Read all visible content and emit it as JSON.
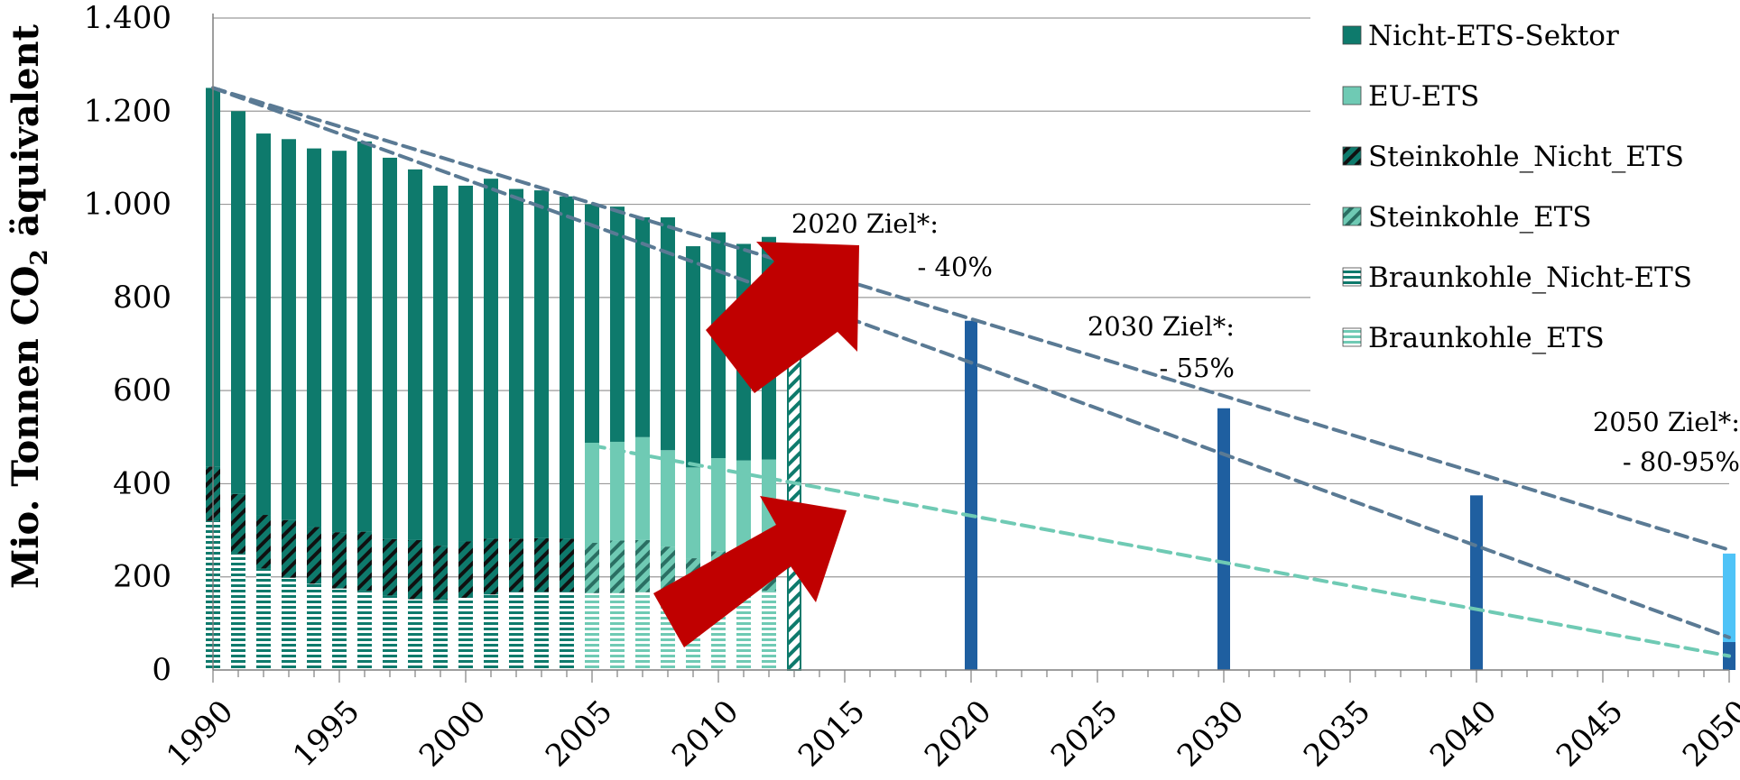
{
  "chart_data": {
    "type": "bar",
    "ylabel_main": "Mio. Tonnen CO",
    "ylabel_sub": "2",
    "ylabel_tail": " äquivalent",
    "ylim": [
      0,
      1400
    ],
    "yticks": [
      0,
      200,
      400,
      600,
      800,
      1000,
      1200,
      1400
    ],
    "ytick_labels": [
      "0",
      "200",
      "400",
      "600",
      "800",
      "1.000",
      "1.200",
      "1.400"
    ],
    "xlim": [
      1990,
      2050
    ],
    "xticks": [
      "1990",
      "1995",
      "2000",
      "2005",
      "2010",
      "2015",
      "2020",
      "2025",
      "2030",
      "2035",
      "2040",
      "2045",
      "2050"
    ],
    "grid": true,
    "legend_position": "top-right",
    "legend": [
      {
        "name": "Nicht-ETS-Sektor",
        "color": "#0e7a6c",
        "pattern": "solid"
      },
      {
        "name": "EU-ETS",
        "color": "#6fcab4",
        "pattern": "solid"
      },
      {
        "name": "Steinkohle_Nicht_ETS",
        "color": "#0e7a6c",
        "pattern": "diag-dark"
      },
      {
        "name": "Steinkohle_ETS",
        "color": "#6fcab4",
        "pattern": "diag-light"
      },
      {
        "name": "Braunkohle_Nicht-ETS",
        "color": "#0e7a6c",
        "pattern": "horiz-dark"
      },
      {
        "name": "Braunkohle_ETS",
        "color": "#6fcab4",
        "pattern": "horiz-light"
      }
    ],
    "historical": {
      "years": [
        1990,
        1991,
        1992,
        1993,
        1994,
        1995,
        1996,
        1997,
        1998,
        1999,
        2000,
        2001,
        2002,
        2003,
        2004,
        2005,
        2006,
        2007,
        2008,
        2009,
        2010,
        2011,
        2012
      ],
      "total": [
        1250,
        1200,
        1152,
        1140,
        1120,
        1115,
        1135,
        1100,
        1075,
        1040,
        1040,
        1055,
        1033,
        1030,
        1017,
        1000,
        995,
        972,
        972,
        910,
        940,
        915,
        930
      ],
      "ets_share_start_year": 2005,
      "ets_top": [
        null,
        null,
        null,
        null,
        null,
        null,
        null,
        null,
        null,
        null,
        null,
        null,
        null,
        null,
        null,
        488,
        490,
        500,
        472,
        435,
        455,
        450,
        452
      ],
      "steinkohle_top": [
        437,
        378,
        333,
        322,
        307,
        296,
        297,
        281,
        279,
        267,
        276,
        282,
        282,
        283,
        282,
        273,
        278,
        279,
        265,
        240,
        255,
        250,
        250
      ],
      "braunkohle_top": [
        320,
        250,
        218,
        198,
        185,
        175,
        170,
        160,
        152,
        150,
        155,
        162,
        168,
        168,
        168,
        165,
        165,
        167,
        162,
        158,
        160,
        168,
        170
      ]
    },
    "estimate_2013": {
      "year": 2013,
      "value": 793
    },
    "target_bars": [
      {
        "year": 2020,
        "value": 750,
        "color": "#1f5fa0"
      },
      {
        "year": 2030,
        "value": 562,
        "color": "#1f5fa0"
      },
      {
        "year": 2040,
        "value": 375,
        "color": "#1f5fa0"
      },
      {
        "year": 2050,
        "value": 60,
        "color": "#1f5fa0",
        "upper_value": 250,
        "upper_color": "#4fc3f7"
      }
    ],
    "trend_lines": [
      {
        "from": [
          1990,
          1250
        ],
        "to": [
          2050,
          258
        ],
        "color": "#5a7a94"
      },
      {
        "from": [
          1990,
          1250
        ],
        "to": [
          2050,
          70
        ],
        "color": "#5a7a94"
      },
      {
        "from": [
          2005,
          482
        ],
        "to": [
          2050,
          30
        ],
        "color": "#6fcab4"
      }
    ],
    "annotations": [
      {
        "line1": "2020 Ziel*:",
        "line2": "- 40%"
      },
      {
        "line1": "2030 Ziel*:",
        "line2": "- 55%"
      },
      {
        "line1": "2050 Ziel*:",
        "line2": "- 80-95%"
      }
    ],
    "arrows": [
      {
        "color": "#c00000"
      },
      {
        "color": "#c00000"
      }
    ]
  }
}
